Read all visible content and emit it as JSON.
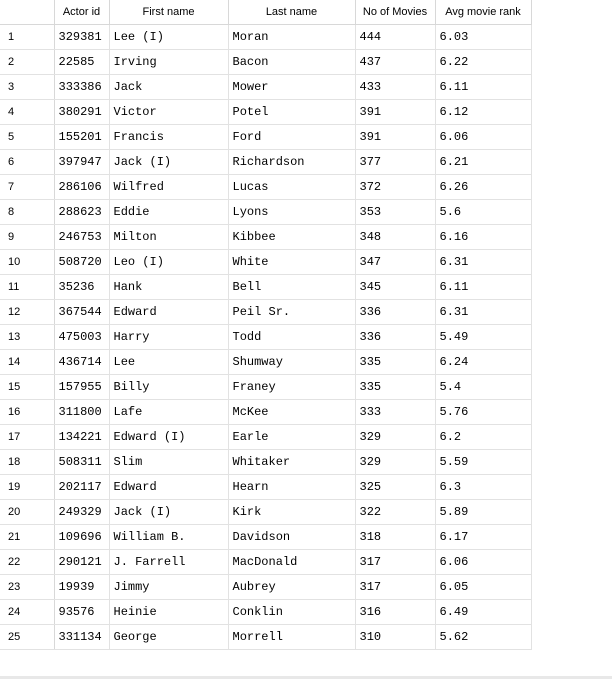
{
  "grid": {
    "columns": [
      "Actor id",
      "First name",
      "Last name",
      "No of Movies",
      "Avg movie rank"
    ],
    "rows": [
      {
        "num": "1",
        "actor_id": "329381",
        "first_name": "Lee (I)",
        "last_name": "Moran",
        "movies": "444",
        "rank": "6.03"
      },
      {
        "num": "2",
        "actor_id": "22585",
        "first_name": "Irving",
        "last_name": "Bacon",
        "movies": "437",
        "rank": "6.22"
      },
      {
        "num": "3",
        "actor_id": "333386",
        "first_name": "Jack",
        "last_name": "Mower",
        "movies": "433",
        "rank": "6.11"
      },
      {
        "num": "4",
        "actor_id": "380291",
        "first_name": "Victor",
        "last_name": "Potel",
        "movies": "391",
        "rank": "6.12"
      },
      {
        "num": "5",
        "actor_id": "155201",
        "first_name": "Francis",
        "last_name": "Ford",
        "movies": "391",
        "rank": "6.06"
      },
      {
        "num": "6",
        "actor_id": "397947",
        "first_name": "Jack (I)",
        "last_name": "Richardson",
        "movies": "377",
        "rank": "6.21"
      },
      {
        "num": "7",
        "actor_id": "286106",
        "first_name": "Wilfred",
        "last_name": "Lucas",
        "movies": "372",
        "rank": "6.26"
      },
      {
        "num": "8",
        "actor_id": "288623",
        "first_name": "Eddie",
        "last_name": "Lyons",
        "movies": "353",
        "rank": "5.6"
      },
      {
        "num": "9",
        "actor_id": "246753",
        "first_name": "Milton",
        "last_name": "Kibbee",
        "movies": "348",
        "rank": "6.16"
      },
      {
        "num": "10",
        "actor_id": "508720",
        "first_name": "Leo (I)",
        "last_name": "White",
        "movies": "347",
        "rank": "6.31"
      },
      {
        "num": "11",
        "actor_id": "35236",
        "first_name": "Hank",
        "last_name": "Bell",
        "movies": "345",
        "rank": "6.11"
      },
      {
        "num": "12",
        "actor_id": "367544",
        "first_name": "Edward",
        "last_name": "Peil Sr.",
        "movies": "336",
        "rank": "6.31"
      },
      {
        "num": "13",
        "actor_id": "475003",
        "first_name": "Harry",
        "last_name": "Todd",
        "movies": "336",
        "rank": "5.49"
      },
      {
        "num": "14",
        "actor_id": "436714",
        "first_name": "Lee",
        "last_name": "Shumway",
        "movies": "335",
        "rank": "6.24"
      },
      {
        "num": "15",
        "actor_id": "157955",
        "first_name": "Billy",
        "last_name": "Franey",
        "movies": "335",
        "rank": "5.4"
      },
      {
        "num": "16",
        "actor_id": "311800",
        "first_name": "Lafe",
        "last_name": "McKee",
        "movies": "333",
        "rank": "5.76"
      },
      {
        "num": "17",
        "actor_id": "134221",
        "first_name": "Edward (I)",
        "last_name": "Earle",
        "movies": "329",
        "rank": "6.2"
      },
      {
        "num": "18",
        "actor_id": "508311",
        "first_name": "Slim",
        "last_name": "Whitaker",
        "movies": "329",
        "rank": "5.59"
      },
      {
        "num": "19",
        "actor_id": "202117",
        "first_name": "Edward",
        "last_name": "Hearn",
        "movies": "325",
        "rank": "6.3"
      },
      {
        "num": "20",
        "actor_id": "249329",
        "first_name": "Jack (I)",
        "last_name": "Kirk",
        "movies": "322",
        "rank": "5.89"
      },
      {
        "num": "21",
        "actor_id": "109696",
        "first_name": "William B.",
        "last_name": "Davidson",
        "movies": "318",
        "rank": "6.17"
      },
      {
        "num": "22",
        "actor_id": "290121",
        "first_name": "J. Farrell",
        "last_name": "MacDonald",
        "movies": "317",
        "rank": "6.06"
      },
      {
        "num": "23",
        "actor_id": "19939",
        "first_name": "Jimmy",
        "last_name": "Aubrey",
        "movies": "317",
        "rank": "6.05"
      },
      {
        "num": "24",
        "actor_id": "93576",
        "first_name": "Heinie",
        "last_name": "Conklin",
        "movies": "316",
        "rank": "6.49"
      },
      {
        "num": "25",
        "actor_id": "331134",
        "first_name": "George",
        "last_name": "Morrell",
        "movies": "310",
        "rank": "5.62"
      }
    ]
  }
}
